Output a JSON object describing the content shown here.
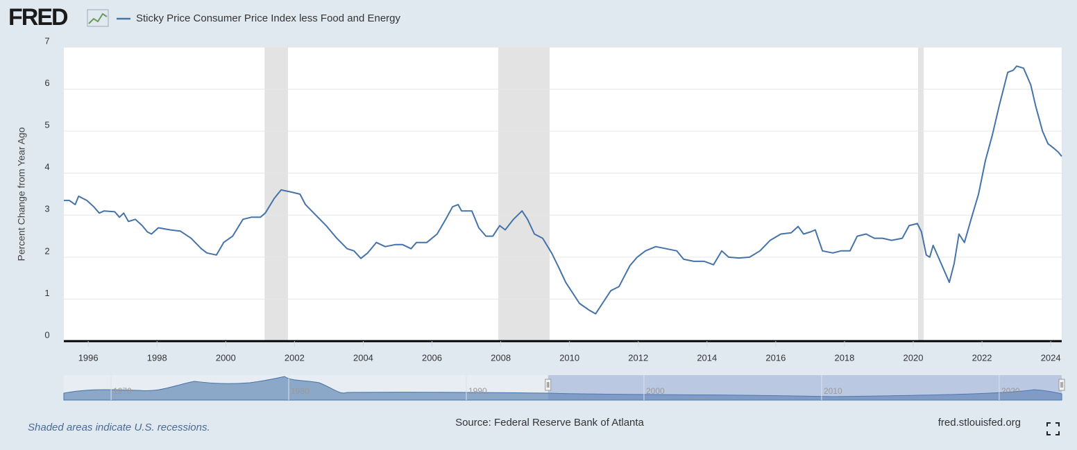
{
  "chart_data": {
    "type": "line",
    "logo": "FRED",
    "ylabel": "Percent Change from Year Ago",
    "note": "Shaded areas indicate U.S. recessions.",
    "source": "Source: Federal Reserve Bank of Atlanta",
    "site": "fred.stlouisfed.org",
    "xlim": [
      1995.29,
      2024.32
    ],
    "xticks": [
      1996,
      1998,
      2000,
      2002,
      2004,
      2006,
      2008,
      2010,
      2012,
      2014,
      2016,
      2018,
      2020,
      2022,
      2024
    ],
    "ylim": [
      0,
      7
    ],
    "yticks": [
      0,
      1,
      2,
      3,
      4,
      5,
      6,
      7
    ],
    "grid": true,
    "recessions": [
      [
        2001.13,
        2001.81
      ],
      [
        2007.93,
        2009.42
      ],
      [
        2020.14,
        2020.3
      ]
    ],
    "x": [
      1995.29,
      1995.45,
      1995.62,
      1995.72,
      1995.96,
      1996.16,
      1996.32,
      1996.46,
      1996.77,
      1996.91,
      1997.03,
      1997.17,
      1997.37,
      1997.57,
      1997.72,
      1997.84,
      1998.04,
      1998.38,
      1998.68,
      1998.99,
      1999.29,
      1999.45,
      1999.73,
      1999.94,
      2000.2,
      2000.5,
      2000.74,
      2001.01,
      2001.15,
      2001.41,
      2001.61,
      2001.91,
      2002.16,
      2002.32,
      2002.62,
      2002.92,
      2003.23,
      2003.53,
      2003.73,
      2003.93,
      2004.13,
      2004.38,
      2004.64,
      2004.94,
      2005.14,
      2005.39,
      2005.55,
      2005.85,
      2006.15,
      2006.4,
      2006.6,
      2006.76,
      2006.86,
      2007.16,
      2007.36,
      2007.57,
      2007.77,
      2007.97,
      2008.13,
      2008.37,
      2008.62,
      2008.78,
      2008.98,
      2009.22,
      2009.48,
      2009.69,
      2009.89,
      2010.09,
      2010.29,
      2010.55,
      2010.76,
      2010.96,
      2011.2,
      2011.44,
      2011.6,
      2011.76,
      2011.97,
      2012.21,
      2012.51,
      2012.81,
      2013.12,
      2013.32,
      2013.62,
      2013.92,
      2014.19,
      2014.43,
      2014.63,
      2014.93,
      2015.24,
      2015.54,
      2015.84,
      2016.15,
      2016.45,
      2016.65,
      2016.81,
      2017.01,
      2017.15,
      2017.36,
      2017.66,
      2017.9,
      2018.16,
      2018.37,
      2018.63,
      2018.87,
      2019.11,
      2019.37,
      2019.68,
      2019.88,
      2020.12,
      2020.24,
      2020.38,
      2020.48,
      2020.58,
      2020.73,
      2020.89,
      2021.05,
      2021.19,
      2021.33,
      2021.49,
      2021.7,
      2021.9,
      2022.1,
      2022.3,
      2022.5,
      2022.75,
      2022.91,
      2023.01,
      2023.21,
      2023.42,
      2023.56,
      2023.76,
      2023.92,
      2024.08,
      2024.22,
      2024.32
    ],
    "series": [
      {
        "name": "Sticky Price Consumer Price Index less Food and Energy",
        "color": "#4572a7",
        "values": [
          3.35,
          3.35,
          3.25,
          3.45,
          3.35,
          3.2,
          3.05,
          3.1,
          3.08,
          2.95,
          3.05,
          2.85,
          2.9,
          2.75,
          2.6,
          2.55,
          2.7,
          2.65,
          2.62,
          2.45,
          2.2,
          2.1,
          2.05,
          2.35,
          2.5,
          2.9,
          2.95,
          2.95,
          3.05,
          3.4,
          3.6,
          3.55,
          3.5,
          3.25,
          3.0,
          2.75,
          2.45,
          2.2,
          2.15,
          1.97,
          2.1,
          2.35,
          2.25,
          2.3,
          2.3,
          2.2,
          2.35,
          2.35,
          2.55,
          2.9,
          3.2,
          3.25,
          3.1,
          3.1,
          2.7,
          2.5,
          2.5,
          2.75,
          2.65,
          2.9,
          3.1,
          2.9,
          2.55,
          2.45,
          2.1,
          1.75,
          1.4,
          1.15,
          0.9,
          0.75,
          0.65,
          0.9,
          1.2,
          1.3,
          1.55,
          1.8,
          2.0,
          2.15,
          2.25,
          2.2,
          2.15,
          1.95,
          1.9,
          1.9,
          1.82,
          2.15,
          2.0,
          1.98,
          2.0,
          2.15,
          2.4,
          2.55,
          2.58,
          2.73,
          2.55,
          2.6,
          2.65,
          2.15,
          2.1,
          2.15,
          2.15,
          2.5,
          2.55,
          2.45,
          2.45,
          2.4,
          2.45,
          2.75,
          2.8,
          2.6,
          2.05,
          2.0,
          2.28,
          2.0,
          1.7,
          1.4,
          1.85,
          2.55,
          2.35,
          2.95,
          3.5,
          4.3,
          4.9,
          5.6,
          6.4,
          6.45,
          6.55,
          6.5,
          6.1,
          5.6,
          5.0,
          4.7,
          4.6,
          4.5,
          4.4
        ]
      }
    ],
    "navigator": {
      "xlim": [
        1967.34,
        2023.52
      ],
      "xticks": [
        1970,
        1980,
        1990,
        2000,
        2010,
        2020
      ],
      "selection": [
        1994.6,
        2023.52
      ]
    }
  }
}
